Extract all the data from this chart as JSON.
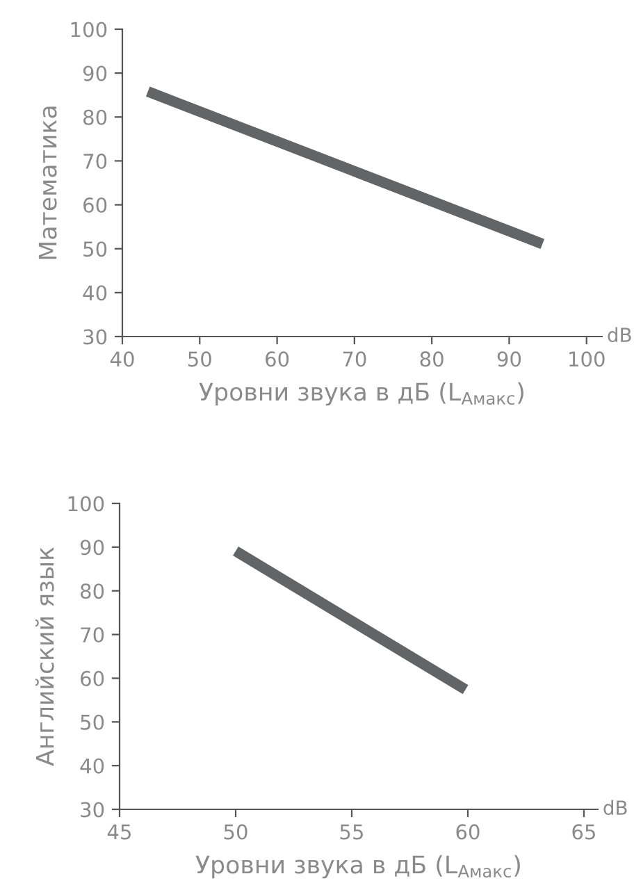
{
  "chart_data": [
    {
      "type": "line",
      "xlabel": "Уровни звука в дБ (L$_{Амакс}$)",
      "ylabel": "Математика",
      "annotations": [
        "dB"
      ],
      "series": [
        {
          "color": "#636466",
          "x": [
            43.3,
            94.3
          ],
          "values": [
            85.8,
            51.1
          ]
        }
      ],
      "xlim": [
        40,
        102
      ],
      "xticks": [
        40,
        50,
        60,
        70,
        80,
        90,
        100
      ],
      "ylim": [
        30,
        100
      ],
      "yticks": [
        30,
        40,
        50,
        60,
        70,
        80,
        90,
        100
      ],
      "grid": false,
      "marker": "none",
      "line_style": "solid"
    },
    {
      "type": "line",
      "xlabel": "Уровни звука в дБ (L$_{Амакс}$)",
      "ylabel": "Английский язык",
      "annotations": [
        "dB"
      ],
      "series": [
        {
          "color": "#636466",
          "x": [
            50,
            59.9
          ],
          "values": [
            89.1,
            57.4
          ]
        }
      ],
      "xlim": [
        45,
        65.6
      ],
      "xticks": [
        45,
        50,
        55,
        60,
        65
      ],
      "ylim": [
        30,
        100
      ],
      "yticks": [
        30,
        40,
        50,
        60,
        70,
        80,
        90,
        100
      ],
      "grid": false,
      "marker": "none",
      "line_style": "solid"
    }
  ]
}
